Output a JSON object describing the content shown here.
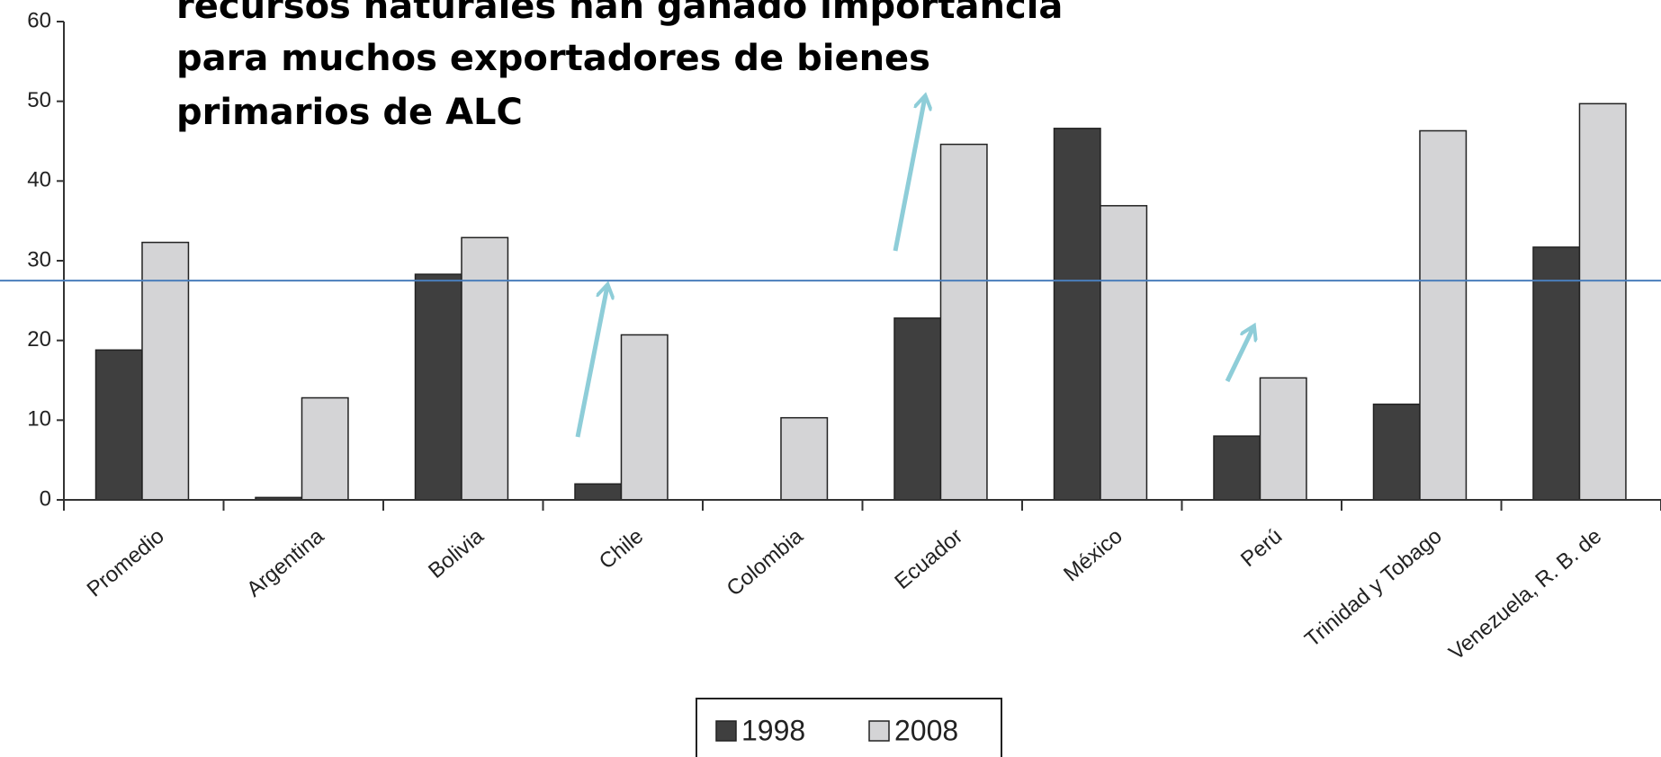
{
  "chart_data": {
    "type": "bar",
    "title_lines": [
      "recursos naturales han ganado importancia",
      "para muchos exportadores de bienes",
      "primarios de ALC"
    ],
    "categories": [
      "Promedio",
      "Argentina",
      "Bolivia",
      "Chile",
      "Colombia",
      "Ecuador",
      "México",
      "Perú",
      "Trinidad y Tobago",
      "Venezuela, R. B. de"
    ],
    "series": [
      {
        "name": "1998",
        "color": "#3f3f3f",
        "values": [
          18.8,
          0.3,
          28.3,
          2,
          0,
          22.8,
          46.6,
          8,
          12,
          31.7
        ]
      },
      {
        "name": "2008",
        "color": "#d4d4d6",
        "values": [
          32.3,
          12.8,
          32.9,
          20.7,
          10.3,
          44.6,
          36.9,
          15.3,
          46.3,
          49.7
        ]
      }
    ],
    "reference_line": 27.5,
    "reference_color": "#4a7ebb",
    "ylim": [
      0,
      60
    ],
    "yticks": [
      0,
      10,
      20,
      30,
      40,
      50,
      60
    ]
  }
}
